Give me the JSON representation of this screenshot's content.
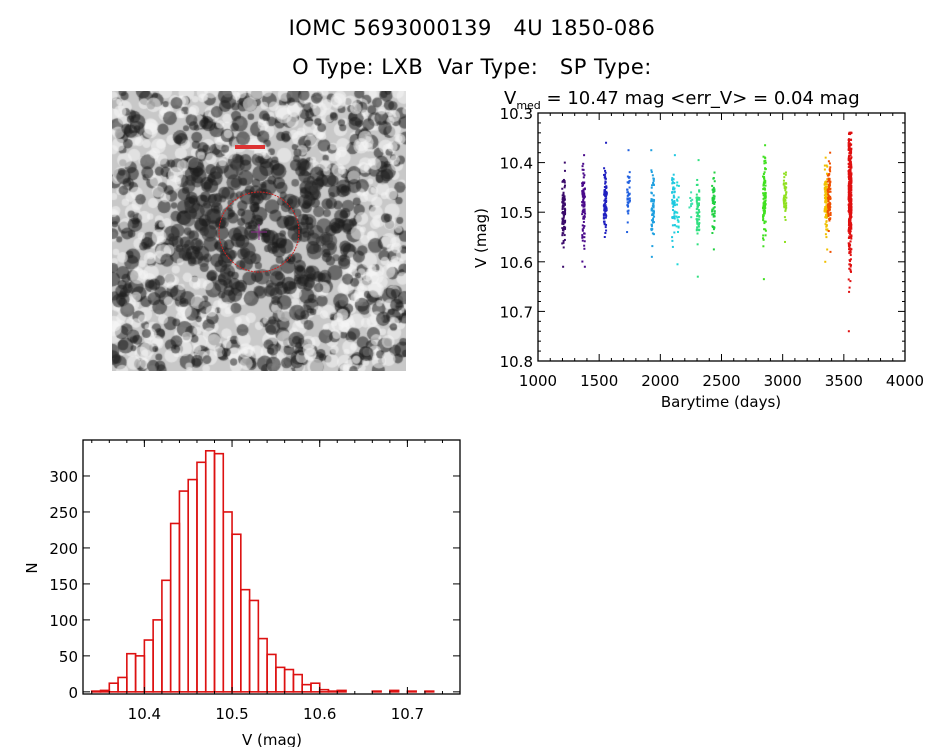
{
  "header": {
    "title_line1": "IOMC 5693000139   4U 1850-086",
    "title_line2": "O Type: LXB  Var Type:   SP Type:"
  },
  "image_panel": {
    "description_icon": "grayscale-sky-image",
    "aperture_color": "#cc2222"
  },
  "chart_data": [
    {
      "type": "scatter",
      "title_prefix": "V",
      "title_subscript": "med",
      "title_rest": " = 10.47 mag <err_V> = 0.04 mag",
      "xlabel": "Barytime (days)",
      "ylabel": "V (mag)",
      "xlim": [
        1000,
        4000
      ],
      "ylim": [
        10.8,
        10.3
      ],
      "y_inverted": true,
      "xticks": [
        "1000",
        "1500",
        "2000",
        "2500",
        "3000",
        "3500",
        "4000"
      ],
      "yticks": [
        "10.3",
        "10.4",
        "10.5",
        "10.6",
        "10.7",
        "10.8"
      ],
      "seasons": [
        {
          "t": 1210,
          "vmin": 10.4,
          "vmax": 10.61,
          "vmed": 10.5,
          "n": 90,
          "color": "#3a0a6a"
        },
        {
          "t": 1373,
          "vmin": 10.385,
          "vmax": 10.61,
          "vmed": 10.49,
          "n": 90,
          "color": "#4a0a8a"
        },
        {
          "t": 1550,
          "vmin": 10.36,
          "vmax": 10.55,
          "vmed": 10.48,
          "n": 80,
          "color": "#2020c0"
        },
        {
          "t": 1740,
          "vmin": 10.375,
          "vmax": 10.54,
          "vmed": 10.46,
          "n": 40,
          "color": "#2060e0"
        },
        {
          "t": 1937,
          "vmin": 10.375,
          "vmax": 10.59,
          "vmed": 10.48,
          "n": 60,
          "color": "#20a0e0"
        },
        {
          "t": 2108,
          "vmin": 10.385,
          "vmax": 10.57,
          "vmed": 10.48,
          "n": 50,
          "color": "#20c8e0"
        },
        {
          "t": 2140,
          "vmin": 10.44,
          "vmax": 10.605,
          "vmed": 10.5,
          "n": 20,
          "color": "#20d8d8"
        },
        {
          "t": 2250,
          "vmin": 10.46,
          "vmax": 10.51,
          "vmed": 10.48,
          "n": 10,
          "color": "#40e0b0"
        },
        {
          "t": 2307,
          "vmin": 10.395,
          "vmax": 10.63,
          "vmed": 10.5,
          "n": 60,
          "color": "#30e080"
        },
        {
          "t": 2435,
          "vmin": 10.42,
          "vmax": 10.575,
          "vmed": 10.49,
          "n": 50,
          "color": "#20d040"
        },
        {
          "t": 2851,
          "vmin": 10.365,
          "vmax": 10.635,
          "vmed": 10.47,
          "n": 90,
          "color": "#40e020"
        },
        {
          "t": 3020,
          "vmin": 10.42,
          "vmax": 10.56,
          "vmed": 10.47,
          "n": 50,
          "color": "#90e020"
        },
        {
          "t": 3355,
          "vmin": 10.39,
          "vmax": 10.6,
          "vmed": 10.48,
          "n": 90,
          "color": "#f0c000"
        },
        {
          "t": 3380,
          "vmin": 10.38,
          "vmax": 10.58,
          "vmed": 10.47,
          "n": 90,
          "color": "#f05000"
        },
        {
          "t": 3551,
          "vmin": 10.34,
          "vmax": 10.74,
          "vmed": 10.47,
          "n": 400,
          "color": "#e01010"
        }
      ]
    },
    {
      "type": "bar",
      "style": "histogram-outline",
      "xlabel": "V (mag)",
      "ylabel": "N",
      "xlim": [
        10.33,
        10.76
      ],
      "ylim": [
        -3,
        350
      ],
      "xticks": [
        "10.4",
        "10.5",
        "10.6",
        "10.7"
      ],
      "yticks": [
        "0",
        "50",
        "100",
        "150",
        "200",
        "250",
        "300"
      ],
      "bin_start": 10.34,
      "bin_width": 0.01,
      "color": "#dd1111",
      "counts": [
        1,
        2,
        12,
        20,
        53,
        50,
        72,
        100,
        155,
        234,
        279,
        295,
        319,
        335,
        331,
        250,
        219,
        142,
        127,
        74,
        52,
        34,
        31,
        24,
        10,
        12,
        3,
        1,
        2,
        0,
        0,
        0,
        1,
        0,
        2,
        0,
        1,
        0,
        1
      ]
    }
  ]
}
